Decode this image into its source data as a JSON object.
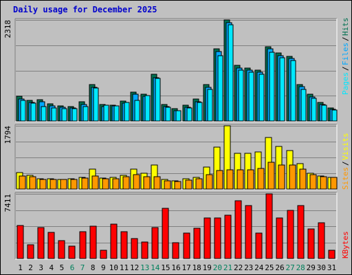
{
  "title": "Daily usage for December 2025",
  "colors": {
    "background": "#c0c0c0",
    "panel": "#c0c0c0",
    "title": "#0000cc",
    "hits": "#007050",
    "files": "#00a8ff",
    "pages": "#00e8ff",
    "visits": "#ffff00",
    "sites": "#ff9800",
    "kbytes": "#ff0000",
    "weekend_label": "#00805c",
    "weekday_label": "#000000",
    "separator": "#000000"
  },
  "chart_data": [
    {
      "type": "bar",
      "title": "Daily usage for December 2025",
      "categories": [
        "1",
        "2",
        "3",
        "4",
        "5",
        "6",
        "7",
        "8",
        "9",
        "10",
        "11",
        "12",
        "13",
        "14",
        "15",
        "16",
        "17",
        "18",
        "19",
        "20",
        "21",
        "22",
        "23",
        "24",
        "25",
        "26",
        "27",
        "28",
        "29",
        "30",
        "31"
      ],
      "weekend_days": [
        "6",
        "7",
        "13",
        "14",
        "20",
        "21",
        "27",
        "28"
      ],
      "ymax_label": "2318",
      "ylim": [
        0,
        2318
      ],
      "series": [
        {
          "name": "Hits",
          "values": [
            560,
            480,
            490,
            390,
            340,
            330,
            440,
            840,
            380,
            360,
            450,
            660,
            610,
            1070,
            380,
            280,
            360,
            500,
            830,
            1660,
            2318,
            1270,
            1220,
            1170,
            1710,
            1560,
            1480,
            840,
            610,
            420,
            300
          ]
        },
        {
          "name": "Files",
          "values": [
            500,
            430,
            440,
            340,
            310,
            300,
            380,
            780,
            330,
            340,
            410,
            610,
            560,
            1000,
            330,
            240,
            320,
            440,
            770,
            1600,
            2250,
            1210,
            1170,
            1120,
            1660,
            1500,
            1430,
            790,
            550,
            380,
            270
          ]
        },
        {
          "name": "Pages",
          "values": [
            480,
            410,
            330,
            300,
            290,
            280,
            330,
            750,
            360,
            340,
            420,
            470,
            590,
            970,
            310,
            230,
            300,
            430,
            720,
            1500,
            2200,
            1160,
            1120,
            1080,
            1580,
            1450,
            1380,
            720,
            520,
            370,
            250
          ]
        }
      ],
      "legend": [
        "Pages",
        "Files",
        "Hits"
      ],
      "legend_placement": "right-vertical"
    },
    {
      "type": "bar",
      "categories": [
        "1",
        "2",
        "3",
        "4",
        "5",
        "6",
        "7",
        "8",
        "9",
        "10",
        "11",
        "12",
        "13",
        "14",
        "15",
        "16",
        "17",
        "18",
        "19",
        "20",
        "21",
        "22",
        "23",
        "24",
        "25",
        "26",
        "27",
        "28",
        "29",
        "30",
        "31"
      ],
      "ymax_label": "1794",
      "ylim": [
        0,
        1794
      ],
      "series": [
        {
          "name": "Visits",
          "values": [
            470,
            390,
            300,
            300,
            280,
            290,
            330,
            560,
            320,
            330,
            390,
            560,
            440,
            680,
            280,
            230,
            290,
            330,
            620,
            1190,
            1794,
            1020,
            1010,
            1050,
            1470,
            1200,
            1100,
            720,
            450,
            380,
            340
          ]
        },
        {
          "name": "Sites",
          "values": [
            380,
            350,
            280,
            280,
            270,
            270,
            310,
            380,
            290,
            300,
            360,
            400,
            350,
            360,
            240,
            210,
            250,
            290,
            400,
            520,
            540,
            540,
            550,
            580,
            760,
            680,
            680,
            570,
            400,
            350,
            340
          ]
        }
      ],
      "legend": [
        "Sites",
        "Visits"
      ],
      "legend_placement": "right-vertical"
    },
    {
      "type": "bar",
      "categories": [
        "1",
        "2",
        "3",
        "4",
        "5",
        "6",
        "7",
        "8",
        "9",
        "10",
        "11",
        "12",
        "13",
        "14",
        "15",
        "16",
        "17",
        "18",
        "19",
        "20",
        "21",
        "22",
        "23",
        "24",
        "25",
        "26",
        "27",
        "28",
        "29",
        "30",
        "31"
      ],
      "ymax_label": "7411",
      "ylim": [
        0,
        7411
      ],
      "series": [
        {
          "name": "KBytes",
          "values": [
            3750,
            1570,
            3560,
            3020,
            2030,
            1440,
            3080,
            3720,
            920,
            3940,
            3080,
            2270,
            1930,
            3560,
            5750,
            1850,
            2920,
            3460,
            4620,
            4630,
            4930,
            6610,
            6070,
            2900,
            7411,
            4630,
            5480,
            6110,
            3360,
            4080,
            950
          ]
        }
      ],
      "legend": [
        "KBytes"
      ],
      "legend_placement": "right-vertical"
    }
  ]
}
